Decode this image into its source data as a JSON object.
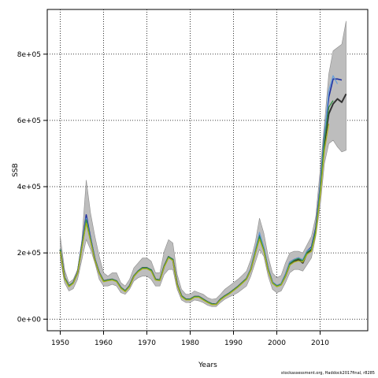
{
  "chart_data": {
    "type": "line",
    "title": "",
    "xlabel": "Years",
    "ylabel": "SSB",
    "xlim": [
      1947,
      2021
    ],
    "ylim": [
      -35000,
      935000
    ],
    "x_ticks": [
      1950,
      1960,
      1970,
      1980,
      1990,
      2000,
      2010
    ],
    "y_ticks": [
      0,
      200000,
      400000,
      600000,
      800000
    ],
    "y_tick_labels": [
      "0e+00",
      "2e+05",
      "4e+05",
      "6e+05",
      "8e+05"
    ],
    "grid": "dotted",
    "footnote": "stockassessment.org, Haddock2017final, r8285",
    "band": {
      "x": [
        1950,
        1951,
        1952,
        1953,
        1954,
        1955,
        1956,
        1957,
        1958,
        1959,
        1960,
        1961,
        1962,
        1963,
        1964,
        1965,
        1966,
        1967,
        1968,
        1969,
        1970,
        1971,
        1972,
        1973,
        1974,
        1975,
        1976,
        1977,
        1978,
        1979,
        1980,
        1981,
        1982,
        1983,
        1984,
        1985,
        1986,
        1987,
        1988,
        1989,
        1990,
        1991,
        1992,
        1993,
        1994,
        1995,
        1996,
        1997,
        1998,
        1999,
        2000,
        2001,
        2002,
        2003,
        2004,
        2005,
        2006,
        2007,
        2008,
        2009,
        2010,
        2011,
        2012,
        2013,
        2014,
        2015,
        2016
      ],
      "upper": [
        250000,
        150000,
        110000,
        120000,
        150000,
        240000,
        420000,
        320000,
        250000,
        190000,
        140000,
        130000,
        140000,
        140000,
        110000,
        100000,
        120000,
        155000,
        170000,
        185000,
        185000,
        175000,
        140000,
        140000,
        205000,
        240000,
        230000,
        135000,
        90000,
        75000,
        75000,
        85000,
        80000,
        75000,
        65000,
        60000,
        62000,
        75000,
        90000,
        100000,
        110000,
        120000,
        132000,
        145000,
        180000,
        230000,
        305000,
        260000,
        190000,
        140000,
        125000,
        132000,
        170000,
        200000,
        205000,
        205000,
        200000,
        225000,
        250000,
        310000,
        450000,
        590000,
        740000,
        810000,
        820000,
        830000,
        900000
      ],
      "lower": [
        180000,
        110000,
        85000,
        92000,
        120000,
        180000,
        240000,
        210000,
        170000,
        120000,
        100000,
        100000,
        105000,
        100000,
        80000,
        75000,
        90000,
        115000,
        125000,
        130000,
        130000,
        120000,
        100000,
        100000,
        135000,
        150000,
        150000,
        90000,
        58000,
        50000,
        50000,
        58000,
        55000,
        50000,
        42000,
        38000,
        38000,
        50000,
        60000,
        67000,
        73000,
        80000,
        90000,
        100000,
        130000,
        170000,
        210000,
        190000,
        130000,
        90000,
        80000,
        85000,
        110000,
        140000,
        150000,
        150000,
        145000,
        165000,
        185000,
        250000,
        340000,
        470000,
        530000,
        540000,
        520000,
        505000,
        510000
      ]
    },
    "series": [
      {
        "color": "#333333",
        "line_width": 2.0,
        "x": [
          1950,
          1951,
          1952,
          1953,
          1954,
          1955,
          1956,
          1957,
          1958,
          1959,
          1960,
          1961,
          1962,
          1963,
          1964,
          1965,
          1966,
          1967,
          1968,
          1969,
          1970,
          1971,
          1972,
          1973,
          1974,
          1975,
          1976,
          1977,
          1978,
          1979,
          1980,
          1981,
          1982,
          1983,
          1984,
          1985,
          1986,
          1987,
          1988,
          1989,
          1990,
          1991,
          1992,
          1993,
          1994,
          1995,
          1996,
          1997,
          1998,
          1999,
          2000,
          2001,
          2002,
          2003,
          2004,
          2005,
          2006,
          2007,
          2008,
          2009,
          2010,
          2011,
          2012,
          2013,
          2014,
          2015,
          2016
        ],
        "y": [
          210000,
          125000,
          100000,
          110000,
          140000,
          220000,
          300000,
          240000,
          180000,
          140000,
          115000,
          118000,
          120000,
          115000,
          95000,
          85000,
          100000,
          130000,
          145000,
          155000,
          155000,
          148000,
          120000,
          118000,
          160000,
          188000,
          180000,
          105000,
          70000,
          60000,
          60000,
          68000,
          68000,
          60000,
          52000,
          46000,
          45000,
          60000,
          70000,
          78000,
          88000,
          98000,
          110000,
          122000,
          150000,
          200000,
          250000,
          210000,
          150000,
          110000,
          100000,
          105000,
          130000,
          165000,
          175000,
          180000,
          170000,
          200000,
          210000,
          270000,
          390000,
          530000,
          620000,
          650000,
          665000,
          655000,
          680000
        ]
      },
      {
        "color": "#1f2fa0",
        "line_width": 1.6,
        "x": [
          1950,
          1951,
          1952,
          1953,
          1954,
          1955,
          1956,
          1957,
          1958,
          1959,
          1960,
          1961,
          1962,
          1963,
          1964,
          1965,
          1966,
          1967,
          1968,
          1969,
          1970,
          1971,
          1972,
          1973,
          1974,
          1975,
          1976,
          1977,
          1978,
          1979,
          1980,
          1981,
          1982,
          1983,
          1984,
          1985,
          1986,
          1987,
          1988,
          1989,
          1990,
          1991,
          1992,
          1993,
          1994,
          1995,
          1996,
          1997,
          1998,
          1999,
          2000,
          2001,
          2002,
          2003,
          2004,
          2005,
          2006,
          2007,
          2008,
          2009,
          2010,
          2011,
          2012,
          2013,
          2014,
          2015
        ],
        "y": [
          210000,
          125000,
          100000,
          110000,
          140000,
          225000,
          315000,
          245000,
          182000,
          140000,
          115000,
          118000,
          120000,
          115000,
          95000,
          85000,
          100000,
          130000,
          145000,
          155000,
          155000,
          148000,
          120000,
          118000,
          160000,
          188000,
          180000,
          105000,
          70000,
          60000,
          60000,
          68000,
          68000,
          60000,
          52000,
          46000,
          45000,
          60000,
          70000,
          78000,
          88000,
          98000,
          110000,
          122000,
          152000,
          205000,
          258000,
          215000,
          152000,
          112000,
          101000,
          107000,
          135000,
          172000,
          180000,
          185000,
          178000,
          205000,
          218000,
          275000,
          400000,
          560000,
          670000,
          725000,
          725000,
          722000
        ]
      },
      {
        "color": "#6a9fd8",
        "line_width": 1.3,
        "x": [
          1950,
          1951,
          1952,
          1953,
          1954,
          1955,
          1956,
          1957,
          1958,
          1959,
          1960,
          1961,
          1962,
          1963,
          1964,
          1965,
          1966,
          1967,
          1968,
          1969,
          1970,
          1971,
          1972,
          1973,
          1974,
          1975,
          1976,
          1977,
          1978,
          1979,
          1980,
          1981,
          1982,
          1983,
          1984,
          1985,
          1986,
          1987,
          1988,
          1989,
          1990,
          1991,
          1992,
          1993,
          1994,
          1995,
          1996,
          1997,
          1998,
          1999,
          2000,
          2001,
          2002,
          2003,
          2004,
          2005,
          2006,
          2007,
          2008,
          2009,
          2010,
          2011,
          2012,
          2013,
          2014
        ],
        "y": [
          210000,
          125000,
          100000,
          110000,
          140000,
          222000,
          305000,
          242000,
          181000,
          140000,
          115000,
          118000,
          120000,
          115000,
          95000,
          85000,
          100000,
          130000,
          145000,
          155000,
          155000,
          148000,
          120000,
          118000,
          160000,
          188000,
          180000,
          105000,
          70000,
          60000,
          60000,
          68000,
          68000,
          60000,
          52000,
          46000,
          45000,
          60000,
          70000,
          78000,
          88000,
          98000,
          110000,
          122000,
          152000,
          205000,
          262000,
          216000,
          152000,
          112000,
          101000,
          107000,
          135000,
          172000,
          180000,
          185000,
          180000,
          205000,
          215000,
          270000,
          395000,
          555000,
          690000,
          735000,
          710000
        ]
      },
      {
        "color": "#2e8b3e",
        "line_width": 1.3,
        "x": [
          1950,
          1951,
          1952,
          1953,
          1954,
          1955,
          1956,
          1957,
          1958,
          1959,
          1960,
          1961,
          1962,
          1963,
          1964,
          1965,
          1966,
          1967,
          1968,
          1969,
          1970,
          1971,
          1972,
          1973,
          1974,
          1975,
          1976,
          1977,
          1978,
          1979,
          1980,
          1981,
          1982,
          1983,
          1984,
          1985,
          1986,
          1987,
          1988,
          1989,
          1990,
          1991,
          1992,
          1993,
          1994,
          1995,
          1996,
          1997,
          1998,
          1999,
          2000,
          2001,
          2002,
          2003,
          2004,
          2005,
          2006,
          2007,
          2008,
          2009,
          2010,
          2011,
          2012,
          2013
        ],
        "y": [
          210000,
          125000,
          100000,
          110000,
          140000,
          220000,
          300000,
          240000,
          180000,
          140000,
          115000,
          118000,
          120000,
          115000,
          95000,
          85000,
          100000,
          130000,
          145000,
          155000,
          155000,
          148000,
          120000,
          118000,
          160000,
          188000,
          180000,
          105000,
          70000,
          60000,
          60000,
          68000,
          68000,
          60000,
          52000,
          46000,
          45000,
          60000,
          70000,
          78000,
          88000,
          98000,
          110000,
          122000,
          150000,
          200000,
          250000,
          210000,
          150000,
          110000,
          100000,
          105000,
          132000,
          168000,
          178000,
          183000,
          176000,
          202000,
          212000,
          268000,
          385000,
          540000,
          640000,
          660000
        ]
      },
      {
        "color": "#a8b21e",
        "line_width": 1.3,
        "x": [
          1950,
          1951,
          1952,
          1953,
          1954,
          1955,
          1956,
          1957,
          1958,
          1959,
          1960,
          1961,
          1962,
          1963,
          1964,
          1965,
          1966,
          1967,
          1968,
          1969,
          1970,
          1971,
          1972,
          1973,
          1974,
          1975,
          1976,
          1977,
          1978,
          1979,
          1980,
          1981,
          1982,
          1983,
          1984,
          1985,
          1986,
          1987,
          1988,
          1989,
          1990,
          1991,
          1992,
          1993,
          1994,
          1995,
          1996,
          1997,
          1998,
          1999,
          2000,
          2001,
          2002,
          2003,
          2004,
          2005,
          2006,
          2007,
          2008,
          2009,
          2010,
          2011,
          2012
        ],
        "y": [
          205000,
          122000,
          98000,
          108000,
          138000,
          215000,
          290000,
          235000,
          178000,
          138000,
          113000,
          116000,
          118000,
          113000,
          93000,
          83000,
          98000,
          128000,
          143000,
          152000,
          152000,
          145000,
          118000,
          116000,
          157000,
          185000,
          177000,
          103000,
          68000,
          58000,
          58000,
          66000,
          66000,
          58000,
          50000,
          44000,
          44000,
          58000,
          68000,
          76000,
          86000,
          96000,
          108000,
          120000,
          148000,
          196000,
          242000,
          205000,
          147000,
          108000,
          98000,
          103000,
          128000,
          163000,
          172000,
          176000,
          172000,
          196000,
          205000,
          258000,
          370000,
          510000,
          590000
        ]
      }
    ]
  }
}
